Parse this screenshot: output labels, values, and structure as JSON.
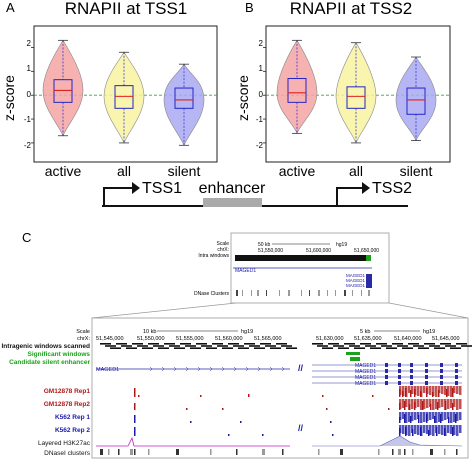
{
  "figure": {
    "panel_a": {
      "letter": "A",
      "title": "RNAPII at TSS1",
      "ylabel": "z-score",
      "ylim": [
        -2.8,
        2.9
      ],
      "yticks": [
        "2",
        "1",
        "0",
        "-1",
        "-2"
      ],
      "categories": [
        "active",
        "all",
        "silent"
      ],
      "colors": [
        "#f4a3a3",
        "#f8f3a0",
        "#a9a9f2"
      ]
    },
    "panel_b": {
      "letter": "B",
      "title": "RNAPII at TSS2",
      "ylabel": "z-score",
      "ylim": [
        -2.8,
        2.9
      ],
      "yticks": [
        "2",
        "1",
        "0",
        "-1",
        "-2"
      ],
      "categories": [
        "active",
        "all",
        "silent"
      ],
      "colors": [
        "#f4a3a3",
        "#f8f3a0",
        "#a9a9f2"
      ]
    },
    "schematic": {
      "tss1": "TSS1",
      "enhancer": "enhancer",
      "tss2": "TSS2"
    },
    "panel_c": {
      "letter": "C",
      "top_track": {
        "scale_label": "Scale",
        "chr_label": "chrX:",
        "track_label": "Intra windows",
        "gene_label": "MAGED1",
        "dnase_label": "DNase Clusters",
        "scale_bar": "50 kb",
        "assembly": "hg19",
        "coords": [
          "51,550,000",
          "51,600,000",
          "51,650,000"
        ],
        "gene_copies": [
          "MAGED1",
          "MAGED1",
          "MAGED1"
        ]
      },
      "zoom": {
        "labels": {
          "scale": "Scale",
          "chr": "chrX:",
          "intragenic": "Intragenic windows scanned",
          "significant": "Significant windows",
          "candidate": "Candidate silent enhancer",
          "gm1": "GM12878 Rep1",
          "gm2": "GM12878 Rep2",
          "k1": "K562 Rep 1",
          "k2": "K562 Rep 2",
          "layered": "Layered H3K27ac",
          "dnase": "DNaseI clusters"
        },
        "scale_bar_left": "10 kb",
        "assembly_left": "hg19",
        "scale_bar_right": "5 kb",
        "assembly_right": "hg19",
        "coords_left": [
          "51,545,000",
          "51,550,000",
          "51,555,000",
          "51,560,000",
          "51,565,000"
        ],
        "coords_right": [
          "51,630,000",
          "51,635,000",
          "51,640,000",
          "51,645,000"
        ],
        "gene_left": "MAGED1",
        "genes_right": [
          "MAGED1",
          "MAGED1",
          "MAGED1",
          "MAGED1"
        ],
        "break_mark": "//"
      },
      "label_colors": {
        "black": "#111111",
        "green": "#1aa31a",
        "red": "#b01818",
        "blue": "#1a1aa8"
      }
    }
  },
  "chart_data": [
    {
      "type": "violin",
      "title": "RNAPII at TSS1",
      "xlabel": "",
      "ylabel": "z-score",
      "ylim": [
        -2.8,
        2.9
      ],
      "grid": false,
      "reference_line": 0,
      "categories": [
        "active",
        "all",
        "silent"
      ],
      "series": [
        {
          "category": "active",
          "color": "#f4a3a3",
          "min": -1.7,
          "q1": -0.3,
          "median": 0.2,
          "q3": 0.65,
          "max": 2.3,
          "upper_tail": 2.3,
          "lower_tail": -1.7
        },
        {
          "category": "all",
          "color": "#f8f3a0",
          "min": -2.0,
          "q1": -0.55,
          "median": -0.05,
          "q3": 0.4,
          "max": 1.8,
          "upper_tail": 1.8,
          "lower_tail": -2.0
        },
        {
          "category": "silent",
          "color": "#a9a9f2",
          "min": -2.1,
          "q1": -0.55,
          "median": -0.2,
          "q3": 0.3,
          "max": 1.3,
          "upper_tail": 1.3,
          "lower_tail": -2.1
        }
      ]
    },
    {
      "type": "violin",
      "title": "RNAPII at TSS2",
      "xlabel": "",
      "ylabel": "z-score",
      "ylim": [
        -2.8,
        2.9
      ],
      "grid": false,
      "reference_line": 0,
      "categories": [
        "active",
        "all",
        "silent"
      ],
      "series": [
        {
          "category": "active",
          "color": "#f4a3a3",
          "min": -1.6,
          "q1": -0.3,
          "median": 0.1,
          "q3": 0.7,
          "max": 2.3,
          "upper_tail": 2.3,
          "lower_tail": -1.6
        },
        {
          "category": "all",
          "color": "#f8f3a0",
          "min": -2.0,
          "q1": -0.55,
          "median": -0.05,
          "q3": 0.35,
          "max": 2.2,
          "upper_tail": 2.2,
          "lower_tail": -2.0
        },
        {
          "category": "silent",
          "color": "#a9a9f2",
          "min": -1.9,
          "q1": -0.8,
          "median": -0.2,
          "q3": 0.3,
          "max": 1.6,
          "upper_tail": 1.6,
          "lower_tail": -1.9
        }
      ]
    }
  ]
}
